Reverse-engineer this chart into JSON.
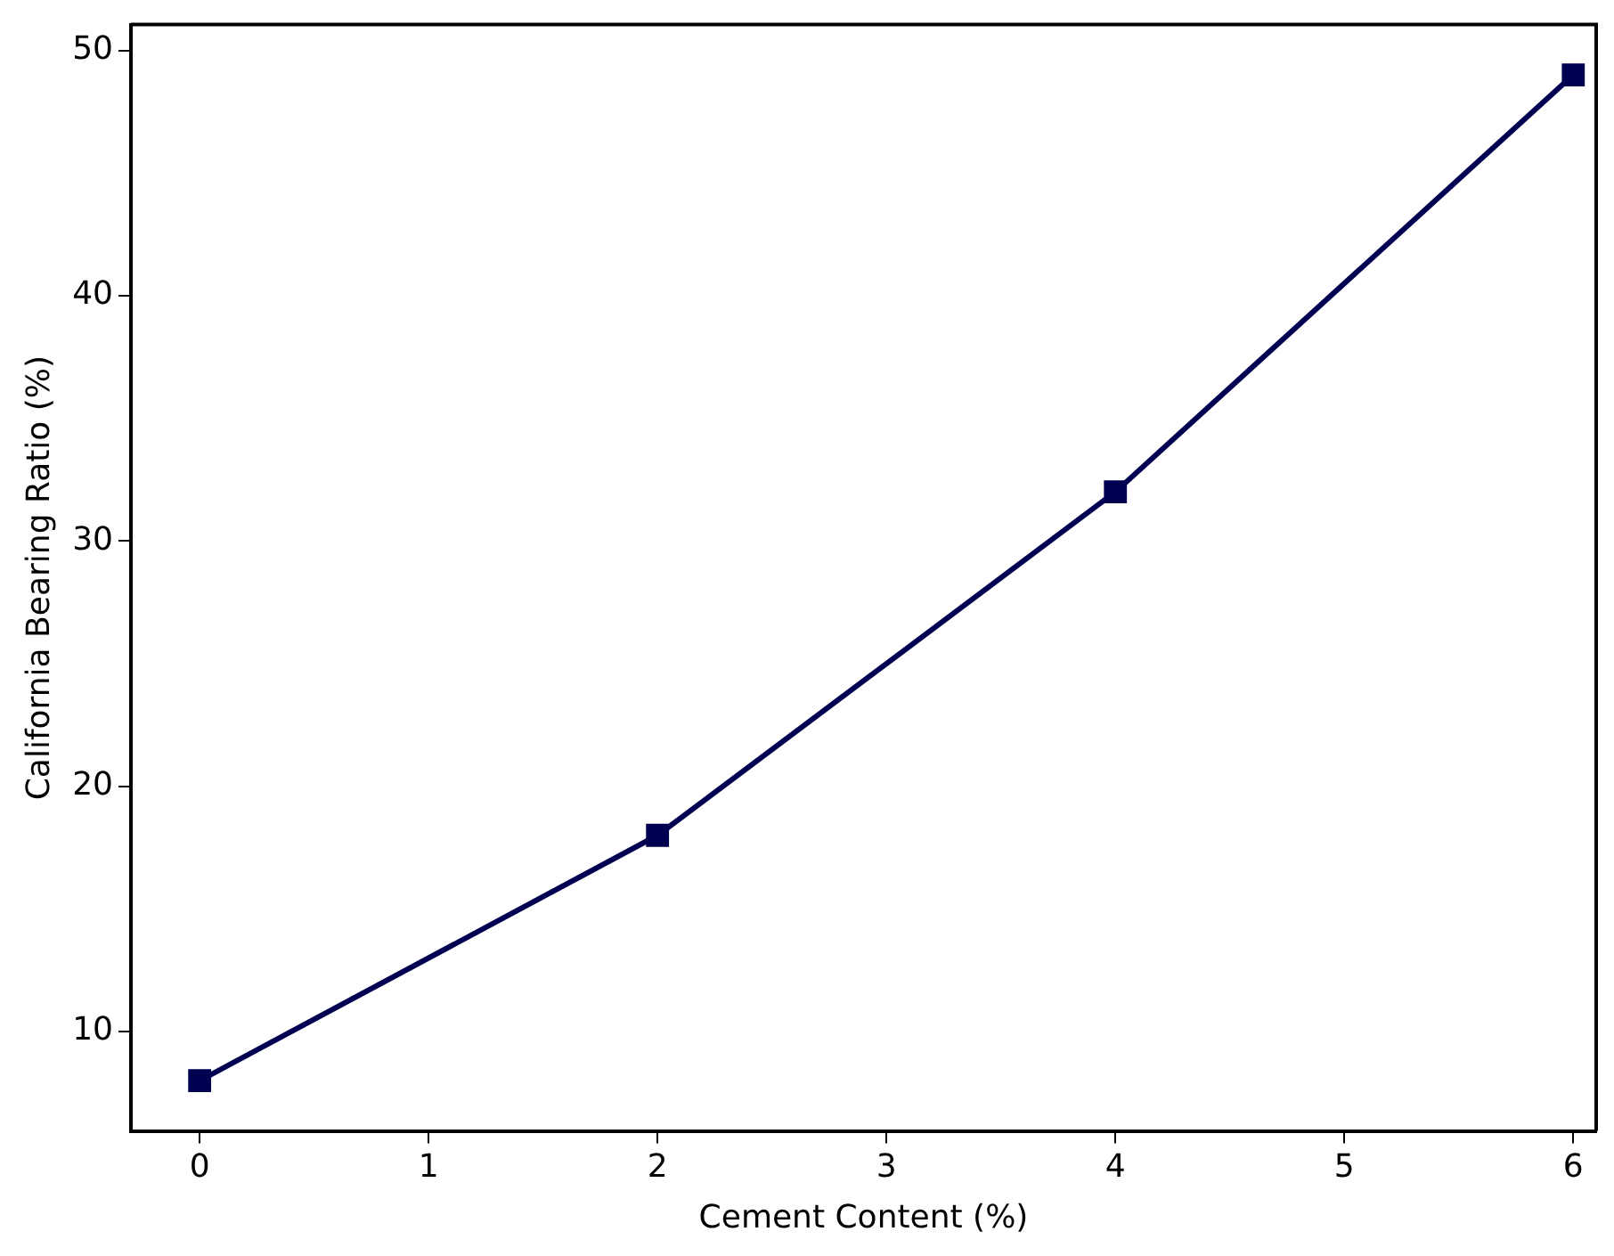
{
  "chart_data": {
    "type": "line",
    "xlabel": "Cement Content (%)",
    "ylabel": "California Bearing Ratio (%)",
    "x": [
      0,
      2,
      4,
      6
    ],
    "series": [
      {
        "color": "#000050",
        "values": [
          8,
          18,
          32,
          49
        ]
      }
    ],
    "xlim": [
      -0.3,
      6.1
    ],
    "ylim": [
      5.95,
      51.05
    ],
    "xticks": [
      0,
      1,
      2,
      3,
      4,
      5,
      6
    ],
    "yticks": [
      10,
      20,
      30,
      40,
      50
    ],
    "marker": "square",
    "line_style": "solid",
    "grid": false,
    "legend": false
  }
}
